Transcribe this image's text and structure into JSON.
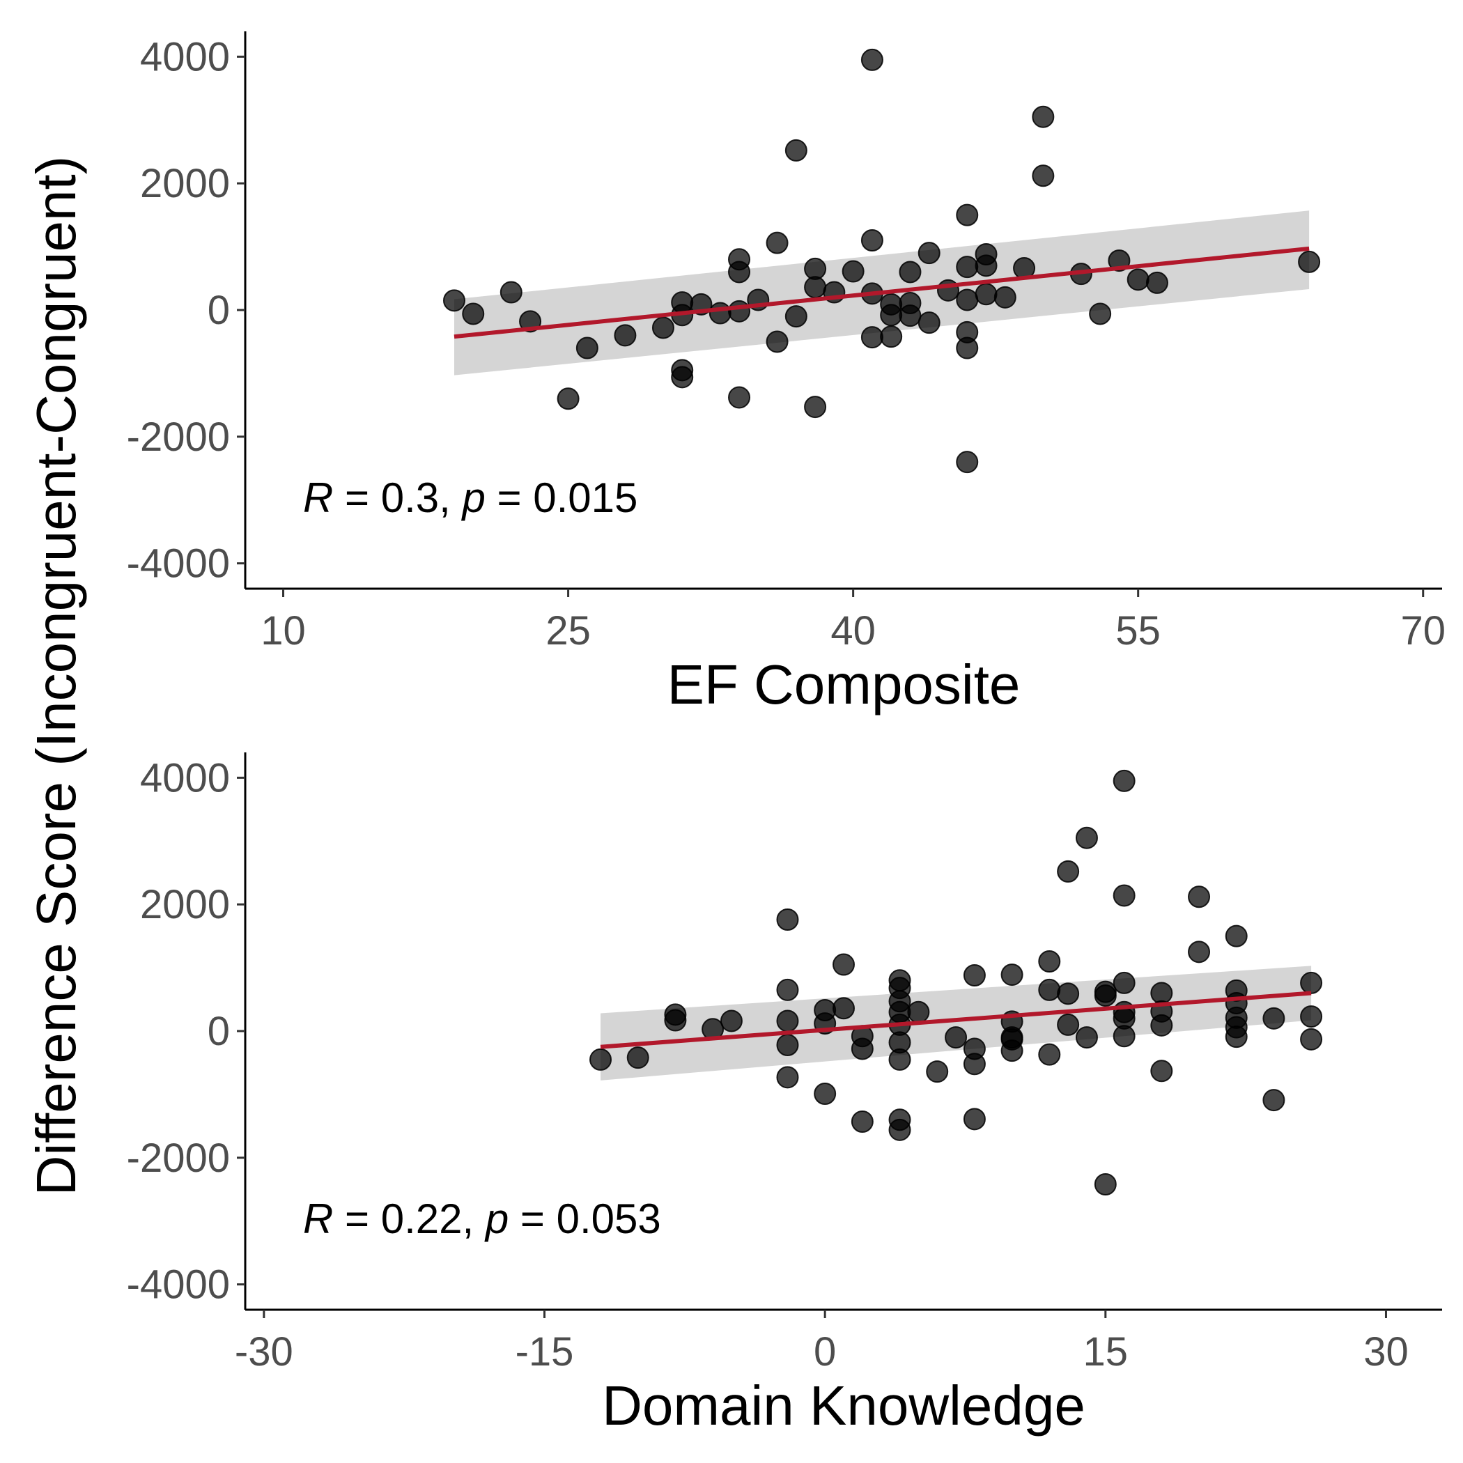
{
  "figure": {
    "ylabel": "Difference Score (Incongruent-Congruent)"
  },
  "chart_data": [
    {
      "type": "scatter",
      "title": "",
      "xlabel": "EF Composite",
      "ylabel": "Difference Score (Incongruent-Congruent)",
      "xlim": [
        8,
        71
      ],
      "ylim": [
        -4400,
        4400
      ],
      "xticks": [
        10,
        25,
        40,
        55,
        70
      ],
      "yticks": [
        -4000,
        -2000,
        0,
        2000,
        4000
      ],
      "ytick_labels": [
        "-4000",
        "-2000",
        "0",
        "2000",
        "4000"
      ],
      "grid": false,
      "annotation": {
        "r_symbol": "R",
        "r_value": " = 0.3, ",
        "p_symbol": "p",
        "p_value": " = 0.015"
      },
      "colors": {
        "points": "#000000",
        "fit_line": "#b2182b",
        "ribbon": "#bebebe"
      },
      "fit": {
        "x": [
          19,
          64
        ],
        "y": [
          -420,
          970
        ],
        "ci_lower": [
          -1030,
          330
        ],
        "ci_upper": [
          170,
          1570
        ]
      },
      "points": [
        {
          "x": 19,
          "y": 150
        },
        {
          "x": 20,
          "y": -60
        },
        {
          "x": 22,
          "y": 280
        },
        {
          "x": 23,
          "y": -180
        },
        {
          "x": 25,
          "y": -1400
        },
        {
          "x": 26,
          "y": -600
        },
        {
          "x": 28,
          "y": -400
        },
        {
          "x": 30,
          "y": -280
        },
        {
          "x": 31,
          "y": 120
        },
        {
          "x": 31,
          "y": -80
        },
        {
          "x": 31,
          "y": -950
        },
        {
          "x": 31,
          "y": -1060
        },
        {
          "x": 32,
          "y": 90
        },
        {
          "x": 33,
          "y": -50
        },
        {
          "x": 34,
          "y": 800
        },
        {
          "x": 34,
          "y": 600
        },
        {
          "x": 34,
          "y": -20
        },
        {
          "x": 34,
          "y": -1380
        },
        {
          "x": 35,
          "y": 160
        },
        {
          "x": 36,
          "y": 1060
        },
        {
          "x": 36,
          "y": -500
        },
        {
          "x": 37,
          "y": 2520
        },
        {
          "x": 37,
          "y": -100
        },
        {
          "x": 38,
          "y": 650
        },
        {
          "x": 38,
          "y": 360
        },
        {
          "x": 38,
          "y": -1530
        },
        {
          "x": 39,
          "y": 280
        },
        {
          "x": 40,
          "y": 610
        },
        {
          "x": 41,
          "y": 3950
        },
        {
          "x": 41,
          "y": 1100
        },
        {
          "x": 41,
          "y": 260
        },
        {
          "x": 41,
          "y": -430
        },
        {
          "x": 42,
          "y": 90
        },
        {
          "x": 42,
          "y": -80
        },
        {
          "x": 42,
          "y": -420
        },
        {
          "x": 43,
          "y": 600
        },
        {
          "x": 43,
          "y": 110
        },
        {
          "x": 43,
          "y": -90
        },
        {
          "x": 44,
          "y": 900
        },
        {
          "x": 44,
          "y": -200
        },
        {
          "x": 45,
          "y": 310
        },
        {
          "x": 46,
          "y": 1500
        },
        {
          "x": 46,
          "y": 680
        },
        {
          "x": 46,
          "y": 160
        },
        {
          "x": 46,
          "y": -350
        },
        {
          "x": 46,
          "y": -600
        },
        {
          "x": 46,
          "y": -2400
        },
        {
          "x": 47,
          "y": 880
        },
        {
          "x": 47,
          "y": 700
        },
        {
          "x": 47,
          "y": 250
        },
        {
          "x": 48,
          "y": 200
        },
        {
          "x": 49,
          "y": 660
        },
        {
          "x": 50,
          "y": 3050
        },
        {
          "x": 50,
          "y": 2120
        },
        {
          "x": 52,
          "y": 570
        },
        {
          "x": 53,
          "y": -60
        },
        {
          "x": 54,
          "y": 780
        },
        {
          "x": 55,
          "y": 480
        },
        {
          "x": 56,
          "y": 430
        },
        {
          "x": 64,
          "y": 760
        }
      ]
    },
    {
      "type": "scatter",
      "title": "",
      "xlabel": "Domain Knowledge",
      "ylabel": "Difference Score (Incongruent-Congruent)",
      "xlim": [
        -31,
        33
      ],
      "ylim": [
        -4400,
        4400
      ],
      "xticks": [
        -30,
        -15,
        0,
        15,
        30
      ],
      "yticks": [
        -4000,
        -2000,
        0,
        2000,
        4000
      ],
      "ytick_labels": [
        "-4000",
        "-2000",
        "0",
        "2000",
        "4000"
      ],
      "grid": false,
      "annotation": {
        "r_symbol": "R",
        "r_value": " = 0.22, ",
        "p_symbol": "p",
        "p_value": " = 0.053"
      },
      "colors": {
        "points": "#000000",
        "fit_line": "#b2182b",
        "ribbon": "#bebebe"
      },
      "fit": {
        "x": [
          -12,
          26
        ],
        "y": [
          -250,
          600
        ],
        "ci_lower": [
          -780,
          170
        ],
        "ci_upper": [
          280,
          1030
        ]
      },
      "points": [
        {
          "x": -12,
          "y": -450
        },
        {
          "x": -10,
          "y": -420
        },
        {
          "x": -8,
          "y": 260
        },
        {
          "x": -8,
          "y": 170
        },
        {
          "x": -6,
          "y": 30
        },
        {
          "x": -5,
          "y": 160
        },
        {
          "x": -2,
          "y": 1760
        },
        {
          "x": -2,
          "y": 650
        },
        {
          "x": -2,
          "y": 160
        },
        {
          "x": -2,
          "y": -220
        },
        {
          "x": -2,
          "y": -730
        },
        {
          "x": 0,
          "y": 330
        },
        {
          "x": 0,
          "y": 120
        },
        {
          "x": 0,
          "y": -990
        },
        {
          "x": 1,
          "y": 1050
        },
        {
          "x": 1,
          "y": 360
        },
        {
          "x": 2,
          "y": -80
        },
        {
          "x": 2,
          "y": -280
        },
        {
          "x": 2,
          "y": -1430
        },
        {
          "x": 4,
          "y": 800
        },
        {
          "x": 4,
          "y": 680
        },
        {
          "x": 4,
          "y": 470
        },
        {
          "x": 4,
          "y": 300
        },
        {
          "x": 4,
          "y": 100
        },
        {
          "x": 4,
          "y": -180
        },
        {
          "x": 4,
          "y": -450
        },
        {
          "x": 4,
          "y": -1400
        },
        {
          "x": 4,
          "y": -1560
        },
        {
          "x": 5,
          "y": 300
        },
        {
          "x": 6,
          "y": -640
        },
        {
          "x": 7,
          "y": -100
        },
        {
          "x": 8,
          "y": 880
        },
        {
          "x": 8,
          "y": -280
        },
        {
          "x": 8,
          "y": -520
        },
        {
          "x": 8,
          "y": -1390
        },
        {
          "x": 10,
          "y": 890
        },
        {
          "x": 10,
          "y": 150
        },
        {
          "x": 10,
          "y": -100
        },
        {
          "x": 10,
          "y": -130
        },
        {
          "x": 10,
          "y": -310
        },
        {
          "x": 12,
          "y": 1100
        },
        {
          "x": 12,
          "y": 650
        },
        {
          "x": 12,
          "y": -370
        },
        {
          "x": 13,
          "y": 2520
        },
        {
          "x": 13,
          "y": 590
        },
        {
          "x": 13,
          "y": 100
        },
        {
          "x": 14,
          "y": 3050
        },
        {
          "x": 14,
          "y": -100
        },
        {
          "x": 15,
          "y": 620
        },
        {
          "x": 15,
          "y": 560
        },
        {
          "x": 15,
          "y": -2420
        },
        {
          "x": 16,
          "y": 3950
        },
        {
          "x": 16,
          "y": 2140
        },
        {
          "x": 16,
          "y": 760
        },
        {
          "x": 16,
          "y": 300
        },
        {
          "x": 16,
          "y": 200
        },
        {
          "x": 16,
          "y": -80
        },
        {
          "x": 18,
          "y": 600
        },
        {
          "x": 18,
          "y": 310
        },
        {
          "x": 18,
          "y": 90
        },
        {
          "x": 18,
          "y": -630
        },
        {
          "x": 20,
          "y": 2120
        },
        {
          "x": 20,
          "y": 1250
        },
        {
          "x": 22,
          "y": 1500
        },
        {
          "x": 22,
          "y": 640
        },
        {
          "x": 22,
          "y": 440
        },
        {
          "x": 22,
          "y": 210
        },
        {
          "x": 22,
          "y": 60
        },
        {
          "x": 22,
          "y": -90
        },
        {
          "x": 24,
          "y": 200
        },
        {
          "x": 24,
          "y": -1090
        },
        {
          "x": 26,
          "y": 760
        },
        {
          "x": 26,
          "y": 230
        },
        {
          "x": 26,
          "y": -130
        }
      ]
    }
  ]
}
